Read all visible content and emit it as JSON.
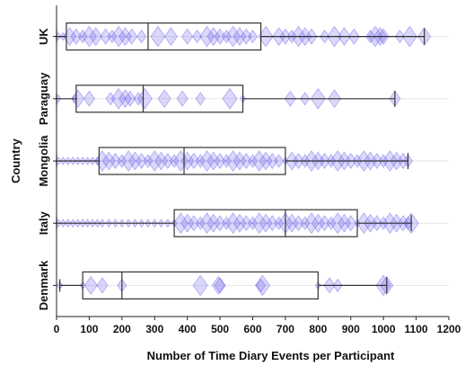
{
  "chart_data": {
    "type": "boxplot",
    "orientation": "horizontal",
    "title": "",
    "xlabel": "Number of Time Diary Events per Participant",
    "ylabel": "Country",
    "xlim": [
      0,
      1200
    ],
    "xticks": [
      0,
      100,
      200,
      300,
      400,
      500,
      600,
      700,
      800,
      900,
      1000,
      1100,
      1200
    ],
    "grid": "horizontal",
    "point_color": "#5b4ee8",
    "box_color": "#333333",
    "categories": [
      "UK",
      "Paraguay",
      "Mongolia",
      "Italy",
      "Denmark"
    ],
    "series": [
      {
        "category": "UK",
        "whisker_low": 0,
        "q1": 30,
        "median": 280,
        "q3": 625,
        "whisker_high": 1125,
        "points": [
          5,
          20,
          40,
          60,
          80,
          100,
          120,
          150,
          170,
          190,
          210,
          230,
          260,
          310,
          350,
          400,
          430,
          460,
          480,
          500,
          520,
          540,
          560,
          580,
          600,
          640,
          680,
          700,
          720,
          740,
          760,
          780,
          820,
          850,
          880,
          910,
          960,
          975,
          990,
          1000,
          1050,
          1080,
          1125
        ]
      },
      {
        "category": "Paraguay",
        "whisker_low": 0,
        "q1": 60,
        "median": 265,
        "q3": 570,
        "whisker_high": 1035,
        "points": [
          5,
          55,
          65,
          100,
          165,
          190,
          210,
          225,
          250,
          270,
          330,
          385,
          440,
          530,
          570,
          715,
          760,
          800,
          850,
          1035
        ]
      },
      {
        "category": "Mongolia",
        "whisker_low": 0,
        "q1": 130,
        "median": 390,
        "q3": 700,
        "whisker_high": 1075,
        "points": [
          5,
          20,
          35,
          50,
          65,
          80,
          95,
          110,
          125,
          140,
          160,
          180,
          200,
          220,
          240,
          260,
          280,
          300,
          320,
          340,
          360,
          380,
          400,
          420,
          440,
          460,
          480,
          500,
          520,
          540,
          560,
          580,
          600,
          620,
          640,
          660,
          680,
          700,
          720,
          740,
          760,
          780,
          800,
          820,
          840,
          860,
          880,
          900,
          920,
          940,
          960,
          980,
          1000,
          1020,
          1040,
          1060,
          1075
        ]
      },
      {
        "category": "Italy",
        "whisker_low": 0,
        "q1": 360,
        "median": 700,
        "q3": 920,
        "whisker_high": 1085,
        "points": [
          5,
          20,
          35,
          50,
          65,
          80,
          95,
          110,
          125,
          140,
          160,
          180,
          200,
          220,
          240,
          260,
          280,
          300,
          320,
          340,
          360,
          380,
          400,
          420,
          440,
          460,
          480,
          500,
          520,
          540,
          560,
          580,
          600,
          620,
          640,
          660,
          680,
          700,
          720,
          740,
          760,
          780,
          800,
          820,
          840,
          860,
          880,
          900,
          920,
          940,
          960,
          980,
          1000,
          1020,
          1040,
          1060,
          1075,
          1085
        ]
      },
      {
        "category": "Denmark",
        "whisker_low": 10,
        "q1": 80,
        "median": 200,
        "q3": 800,
        "whisker_high": 1010,
        "points": [
          10,
          80,
          105,
          140,
          200,
          440,
          495,
          500,
          625,
          630,
          800,
          835,
          860,
          1000,
          1010
        ]
      }
    ]
  }
}
